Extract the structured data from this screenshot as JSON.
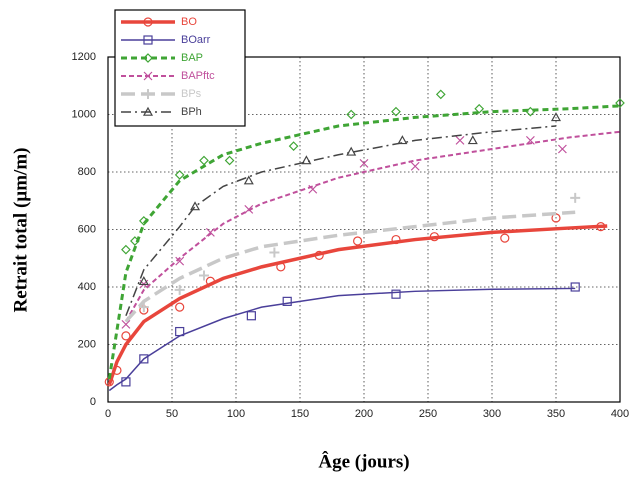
{
  "chart_data": {
    "type": "line",
    "xlabel": "Âge (jours)",
    "ylabel": "Retrait total (µm/m)",
    "xlim": [
      0,
      400
    ],
    "xticks": [
      0,
      50,
      100,
      150,
      200,
      250,
      300,
      350,
      400
    ],
    "ylim": [
      0,
      1200
    ],
    "yticks": [
      0,
      200,
      400,
      600,
      800,
      1000,
      1200
    ],
    "grid": true,
    "legend": "upper left",
    "series": [
      {
        "name": "BO",
        "color": "#e8463c",
        "marker": "circle",
        "x": [
          1,
          7,
          14,
          28,
          56,
          90,
          120,
          180,
          240,
          300,
          360,
          390
        ],
        "values": [
          60,
          140,
          200,
          280,
          360,
          430,
          470,
          530,
          565,
          590,
          605,
          612
        ],
        "marker_x": [
          1,
          7,
          14,
          28,
          56,
          80,
          135,
          165,
          195,
          225,
          255,
          310,
          350,
          385
        ],
        "marker_values": [
          70,
          110,
          230,
          320,
          330,
          420,
          470,
          510,
          560,
          565,
          575,
          570,
          640,
          610
        ]
      },
      {
        "name": "BOarr",
        "color": "#4a3f9a",
        "marker": "square",
        "x": [
          1,
          7,
          14,
          28,
          56,
          90,
          120,
          180,
          240,
          300,
          365
        ],
        "values": [
          40,
          60,
          80,
          150,
          230,
          290,
          330,
          370,
          385,
          392,
          395
        ],
        "marker_x": [
          14,
          28,
          56,
          112,
          140,
          225,
          365
        ],
        "marker_values": [
          70,
          150,
          245,
          300,
          350,
          375,
          400
        ]
      },
      {
        "name": "BAP",
        "color": "#3fa535",
        "marker": "diamond",
        "x": [
          1,
          7,
          14,
          28,
          56,
          90,
          120,
          180,
          240,
          300,
          360,
          400
        ],
        "values": [
          80,
          250,
          450,
          620,
          770,
          860,
          900,
          960,
          990,
          1010,
          1020,
          1030
        ],
        "marker_x": [
          14,
          21,
          28,
          56,
          75,
          95,
          145,
          190,
          225,
          260,
          290,
          330,
          400
        ],
        "marker_values": [
          530,
          560,
          630,
          790,
          840,
          840,
          890,
          1000,
          1010,
          1070,
          1020,
          1010,
          1040
        ]
      },
      {
        "name": "BAPftc",
        "color": "#c0509c",
        "marker": "x",
        "x": [
          14,
          28,
          56,
          90,
          120,
          180,
          240,
          300,
          360,
          400
        ],
        "values": [
          280,
          390,
          500,
          620,
          690,
          780,
          840,
          880,
          920,
          940
        ],
        "marker_x": [
          14,
          28,
          56,
          80,
          110,
          160,
          200,
          240,
          275,
          330,
          355
        ],
        "marker_values": [
          270,
          410,
          490,
          590,
          670,
          740,
          830,
          820,
          910,
          910,
          880
        ]
      },
      {
        "name": "BPs",
        "color": "#c8c8c8",
        "marker": "plus",
        "x": [
          14,
          28,
          56,
          90,
          120,
          180,
          240,
          300,
          365
        ],
        "values": [
          280,
          350,
          430,
          500,
          540,
          580,
          610,
          640,
          660
        ],
        "marker_x": [
          28,
          56,
          75,
          130,
          365
        ],
        "marker_values": [
          330,
          390,
          440,
          520,
          710
        ]
      },
      {
        "name": "BPh",
        "color": "#444444",
        "marker": "triangle",
        "x": [
          14,
          28,
          56,
          68,
          90,
          120,
          180,
          240,
          300,
          350
        ],
        "values": [
          300,
          460,
          610,
          680,
          750,
          800,
          860,
          910,
          940,
          960
        ],
        "marker_x": [
          28,
          68,
          110,
          155,
          190,
          230,
          285,
          350
        ],
        "marker_values": [
          420,
          680,
          770,
          840,
          870,
          910,
          910,
          990
        ]
      }
    ]
  }
}
